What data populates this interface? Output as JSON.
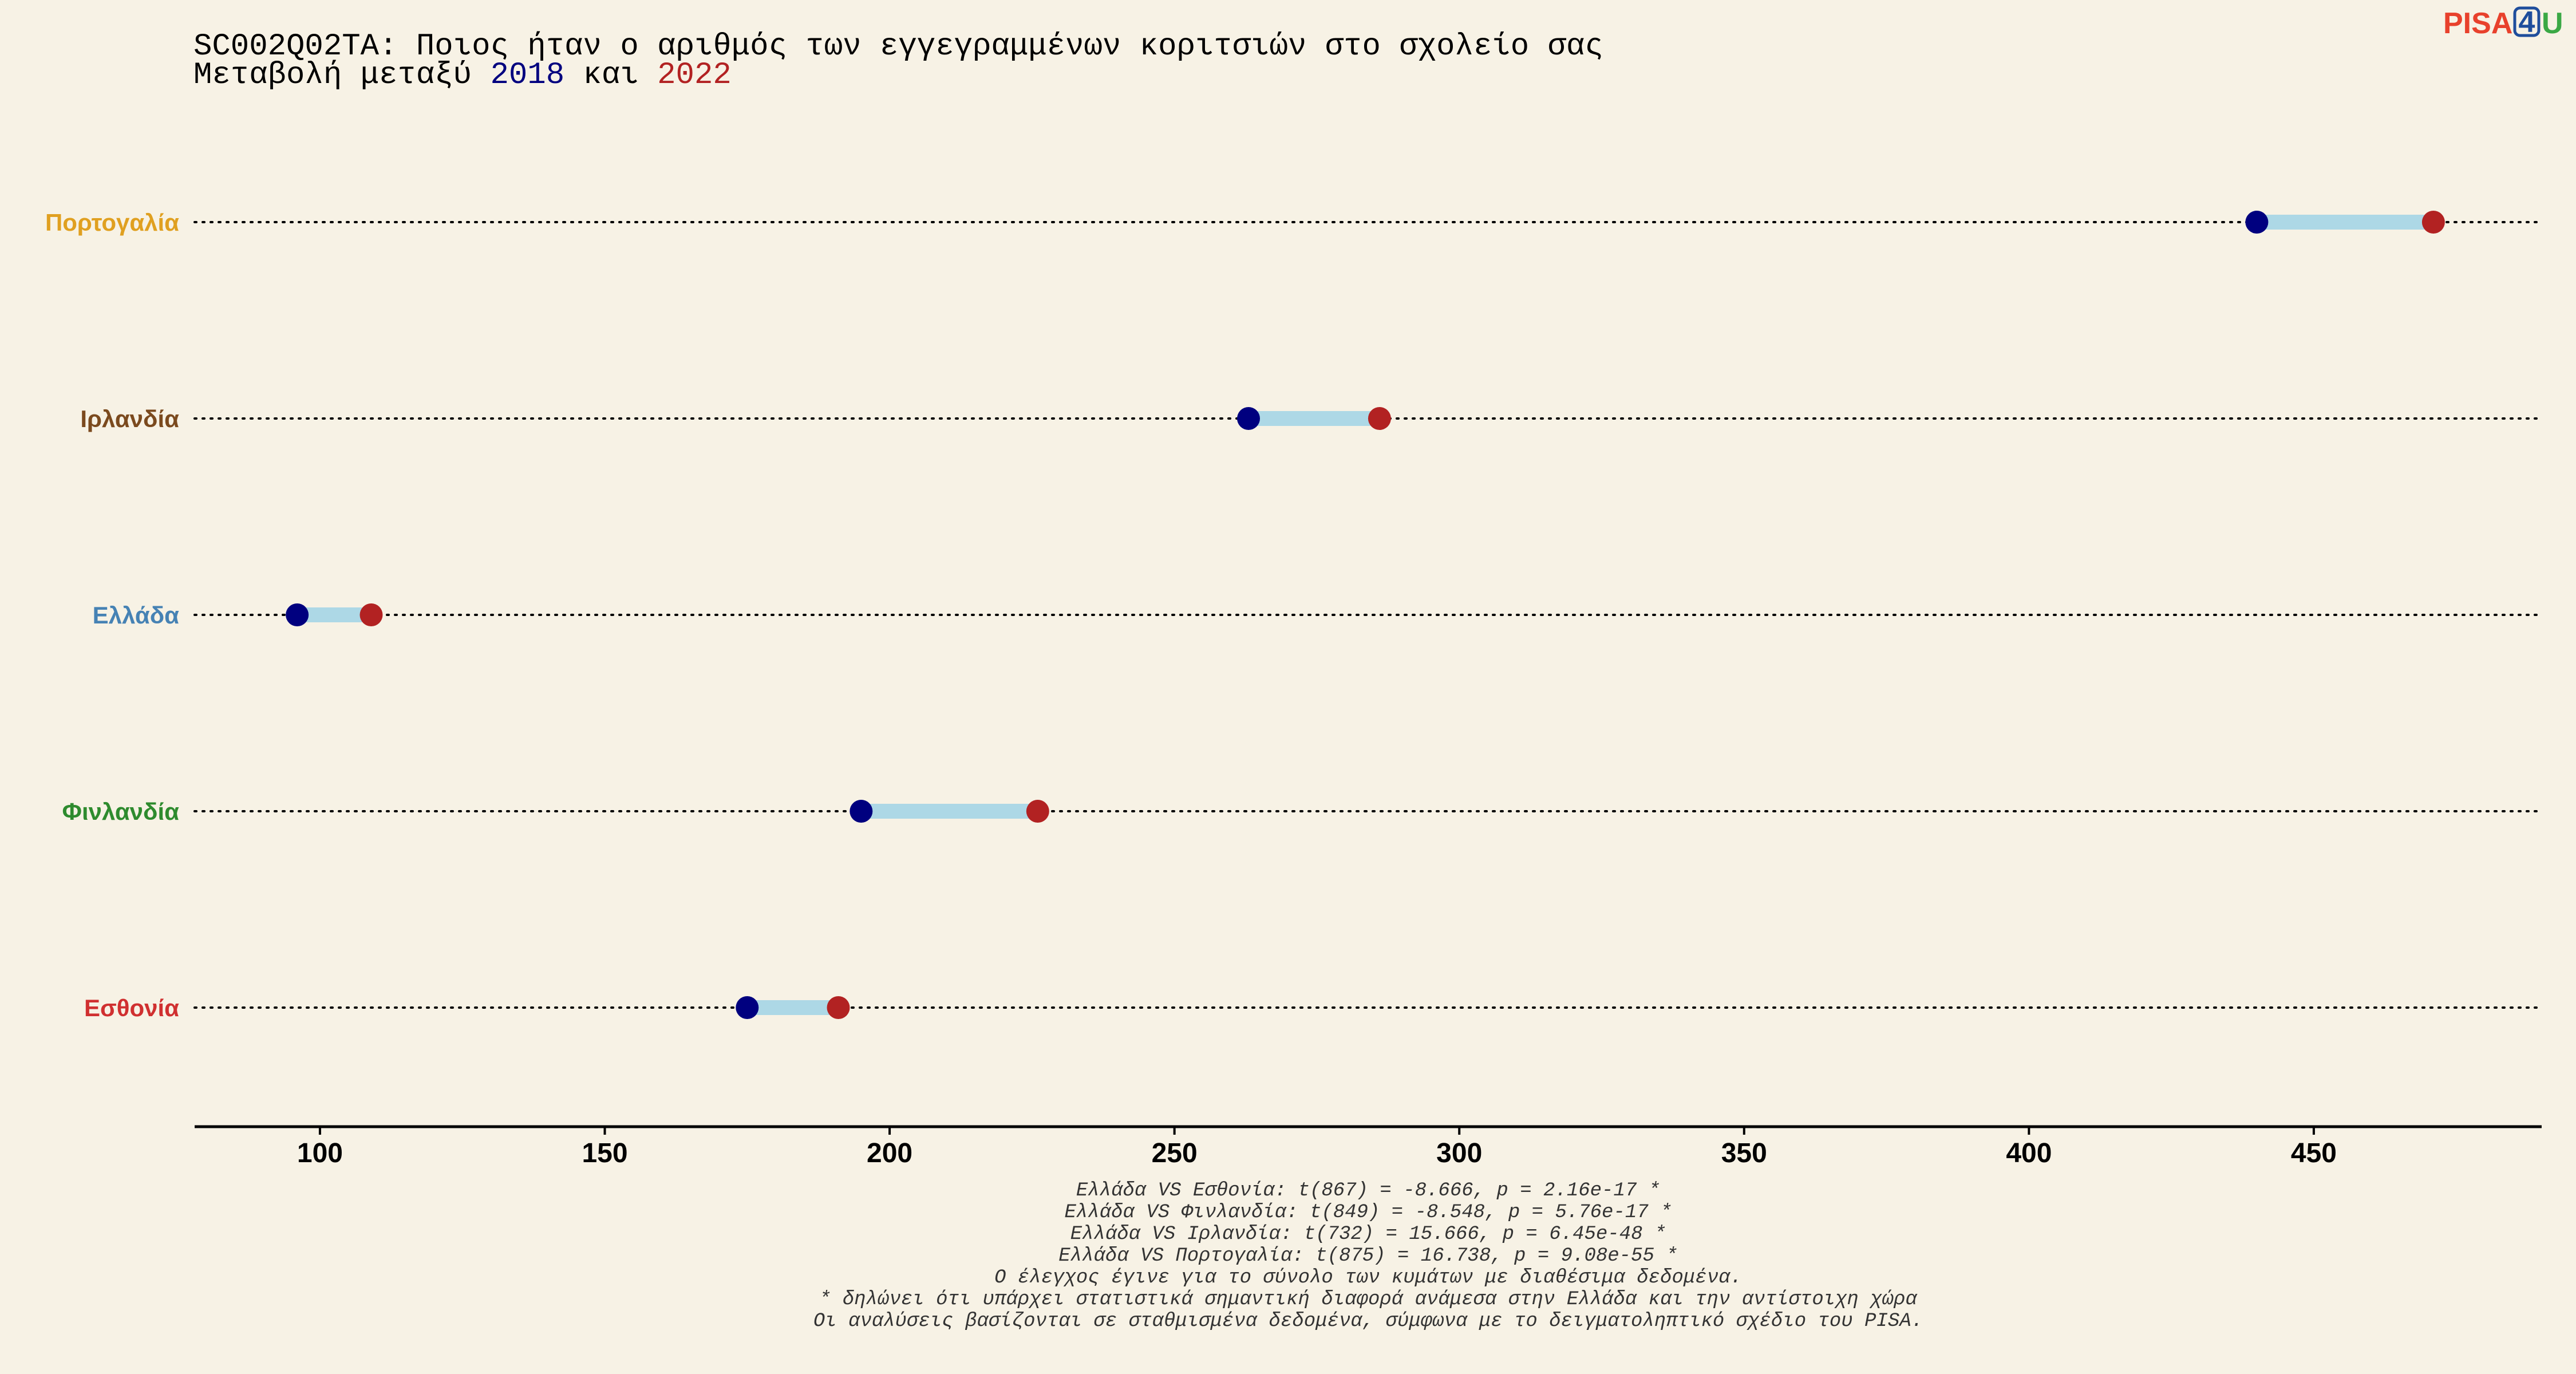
{
  "logo": {
    "part1": "PISA",
    "part2": "4",
    "part3": "U",
    "color1": "#e8412c",
    "color2": "#1f4e9c",
    "color3": "#3aa845"
  },
  "title": {
    "line1": "SC002Q02TA: Ποιος ήταν ο αριθμός των εγγεγραμμένων κοριτσιών στο σχολείο σας",
    "line2_prefix": "Μεταβολή μεταξύ ",
    "year1": "2018",
    "line2_mid": " και ",
    "year2": "2022"
  },
  "colors": {
    "year1": "#00007f",
    "year2": "#b22222",
    "segment": "#add8e6",
    "background": "#f7f2e5"
  },
  "chart_data": {
    "type": "dumbbell",
    "categories": [
      "Πορτογαλία",
      "Ιρλανδία",
      "Ελλάδα",
      "Φινλανδία",
      "Εσθονία"
    ],
    "category_colors": [
      "#e0a020",
      "#7b4a1e",
      "#4682b4",
      "#2e8b2e",
      "#d03030"
    ],
    "series": [
      {
        "name": "2018",
        "values": [
          440,
          263,
          96,
          195,
          175
        ]
      },
      {
        "name": "2022",
        "values": [
          471,
          286,
          109,
          226,
          191
        ]
      }
    ],
    "xlim": [
      78,
      490
    ],
    "xticks": [
      100,
      150,
      200,
      250,
      300,
      350,
      400,
      450
    ],
    "grid": "dotted horizontal per category"
  },
  "footnotes": [
    "Ελλάδα VS Εσθονία: t(867) = -8.666, p = 2.16e-17 *",
    "Ελλάδα VS Φινλανδία: t(849) = -8.548, p = 5.76e-17 *",
    "Ελλάδα VS Ιρλανδία: t(732) = 15.666, p = 6.45e-48 *",
    "Ελλάδα VS Πορτογαλία: t(875) = 16.738, p = 9.08e-55 *",
    "Ο έλεγχος έγινε για το σύνολο των κυμάτων με διαθέσιμα δεδομένα.",
    "* δηλώνει ότι υπάρχει στατιστικά σημαντική διαφορά ανάμεσα στην Ελλάδα και την αντίστοιχη χώρα",
    "Οι αναλύσεις βασίζονται σε σταθμισμένα δεδομένα, σύμφωνα με το δειγματοληπτικό σχέδιο του PISA."
  ]
}
